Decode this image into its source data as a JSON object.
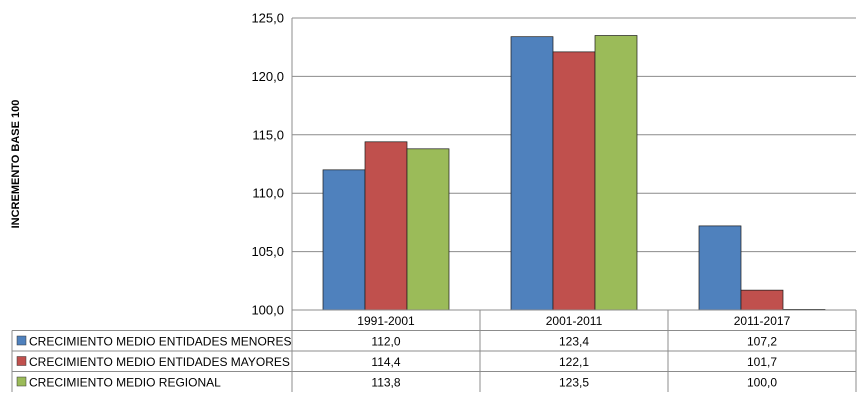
{
  "chart_data": {
    "type": "bar",
    "title": "",
    "ylabel": "INCREMENTO BASE 100",
    "xlabel": "",
    "ylim": [
      100,
      125
    ],
    "yticks": [
      "100,0",
      "105,0",
      "110,0",
      "115,0",
      "120,0",
      "125,0"
    ],
    "ytick_values": [
      100,
      105,
      110,
      115,
      120,
      125
    ],
    "grid": true,
    "legend": "data-table-left",
    "categories": [
      "1991-2001",
      "2001-2011",
      "2011-2017"
    ],
    "series": [
      {
        "name": "CRECIMIENTO MEDIO ENTIDADES MENORES",
        "color": "#4F81BD",
        "values": [
          112.0,
          123.4,
          107.2
        ],
        "labels": [
          "112,0",
          "123,4",
          "107,2"
        ]
      },
      {
        "name": "CRECIMIENTO MEDIO ENTIDADES MAYORES",
        "color": "#C0504D",
        "values": [
          114.4,
          122.1,
          101.7
        ],
        "labels": [
          "114,4",
          "122,1",
          "101,7"
        ]
      },
      {
        "name": "CRECIMIENTO MEDIO REGIONAL",
        "color": "#9BBB59",
        "values": [
          113.8,
          123.5,
          100.0
        ],
        "labels": [
          "113,8",
          "123,5",
          "100,0"
        ]
      }
    ]
  }
}
